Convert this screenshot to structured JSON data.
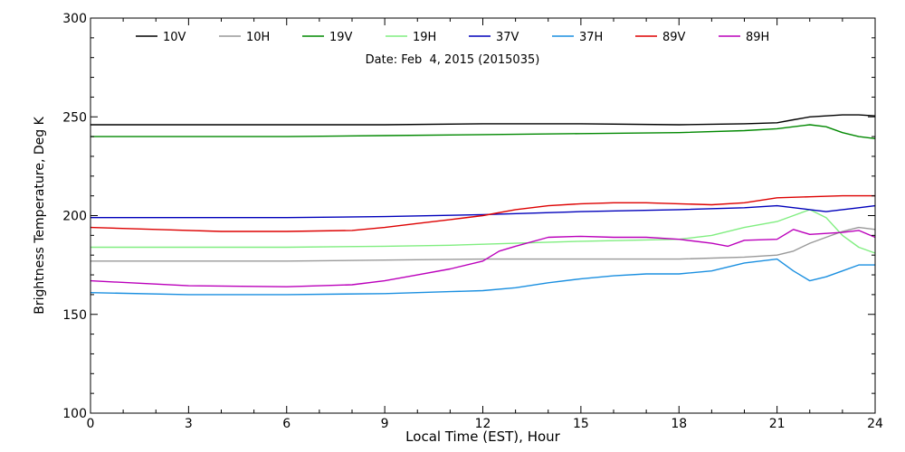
{
  "chart_data": {
    "type": "line",
    "annotation": "Date: Feb  4, 2015 (2015035)",
    "xlabel": "Local Time (EST), Hour",
    "ylabel": "Brightness Temperature, Deg K",
    "xlim": [
      0,
      24
    ],
    "ylim": [
      100,
      300
    ],
    "xticks": [
      0,
      3,
      6,
      9,
      12,
      15,
      18,
      21,
      24
    ],
    "xtick_labels": [
      "0",
      "3",
      "6",
      "9",
      "12",
      "15",
      "18",
      "21",
      "24"
    ],
    "yticks": [
      100,
      150,
      200,
      250,
      300
    ],
    "ytick_labels": [
      "100",
      "150",
      "200",
      "250",
      "300"
    ],
    "grid": false,
    "legend_position": "top",
    "series": [
      {
        "name": "10V",
        "color": "#000000",
        "x": [
          0,
          3,
          6,
          9,
          12,
          15,
          18,
          20,
          21,
          21.5,
          22,
          22.5,
          23,
          23.5,
          24
        ],
        "y": [
          246,
          246,
          246,
          246,
          246.5,
          246.5,
          246,
          246.5,
          247,
          248.5,
          250,
          250.5,
          251,
          251,
          250.5
        ]
      },
      {
        "name": "10H",
        "color": "#999999",
        "x": [
          0,
          3,
          6,
          9,
          12,
          15,
          18,
          20,
          21,
          21.5,
          22,
          22.5,
          23,
          23.5,
          24
        ],
        "y": [
          177,
          177,
          177,
          177.5,
          178,
          178,
          178,
          179,
          180,
          182,
          186,
          189,
          192,
          194,
          193
        ]
      },
      {
        "name": "19V",
        "color": "#008800",
        "x": [
          0,
          3,
          6,
          9,
          12,
          15,
          18,
          20,
          21,
          21.5,
          22,
          22.5,
          23,
          23.5,
          24
        ],
        "y": [
          240,
          240,
          240,
          240.5,
          241,
          241.5,
          242,
          243,
          244,
          245,
          246,
          245,
          242,
          240,
          239
        ]
      },
      {
        "name": "19H",
        "color": "#80ee80",
        "x": [
          0,
          3,
          6,
          9,
          11,
          12,
          13,
          15,
          18,
          19,
          20,
          21,
          21.5,
          22,
          22.5,
          23,
          23.5,
          24
        ],
        "y": [
          184,
          184,
          184,
          184.5,
          185,
          185.5,
          186,
          187,
          188,
          190,
          194,
          197,
          200,
          203,
          199,
          190,
          184,
          181
        ]
      },
      {
        "name": "37V",
        "color": "#0000bb",
        "x": [
          0,
          3,
          6,
          9,
          12,
          15,
          18,
          20,
          21,
          22,
          22.5,
          23,
          23.5,
          24
        ],
        "y": [
          199,
          199,
          199,
          199.5,
          200.5,
          202,
          203,
          204,
          205,
          203,
          202,
          203,
          204,
          205
        ]
      },
      {
        "name": "37H",
        "color": "#1a8fe0",
        "x": [
          0,
          3,
          6,
          9,
          10,
          11,
          12,
          13,
          14,
          15,
          16,
          17,
          18,
          19,
          20,
          21,
          21.5,
          22,
          22.5,
          23,
          23.5,
          24
        ],
        "y": [
          161,
          160,
          160,
          160.5,
          161,
          161.5,
          162,
          163.5,
          166,
          168,
          169.5,
          170.5,
          170.5,
          172,
          176,
          178,
          172,
          167,
          169,
          172,
          175,
          175
        ]
      },
      {
        "name": "89V",
        "color": "#dd0000",
        "x": [
          0,
          2,
          4,
          6,
          8,
          9,
          10,
          11,
          12,
          13,
          14,
          15,
          16,
          17,
          18,
          19,
          20,
          21,
          22,
          23,
          24
        ],
        "y": [
          194,
          193,
          192,
          192,
          192.5,
          194,
          196,
          198,
          200,
          203,
          205,
          206,
          206.5,
          206.5,
          206,
          205.5,
          206.5,
          209,
          209.5,
          210,
          210
        ]
      },
      {
        "name": "89H",
        "color": "#bb00bb",
        "x": [
          0,
          3,
          6,
          8,
          9,
          10,
          11,
          12,
          12.5,
          13,
          14,
          15,
          16,
          17,
          18,
          19,
          19.5,
          20,
          21,
          21.5,
          22,
          23,
          23.5,
          24
        ],
        "y": [
          167,
          164.5,
          164,
          165,
          167,
          170,
          173,
          177,
          182,
          184.5,
          189,
          189.5,
          189,
          189,
          188,
          186,
          184.5,
          187.5,
          188,
          193,
          190.5,
          191.5,
          192.5,
          189
        ]
      }
    ]
  }
}
